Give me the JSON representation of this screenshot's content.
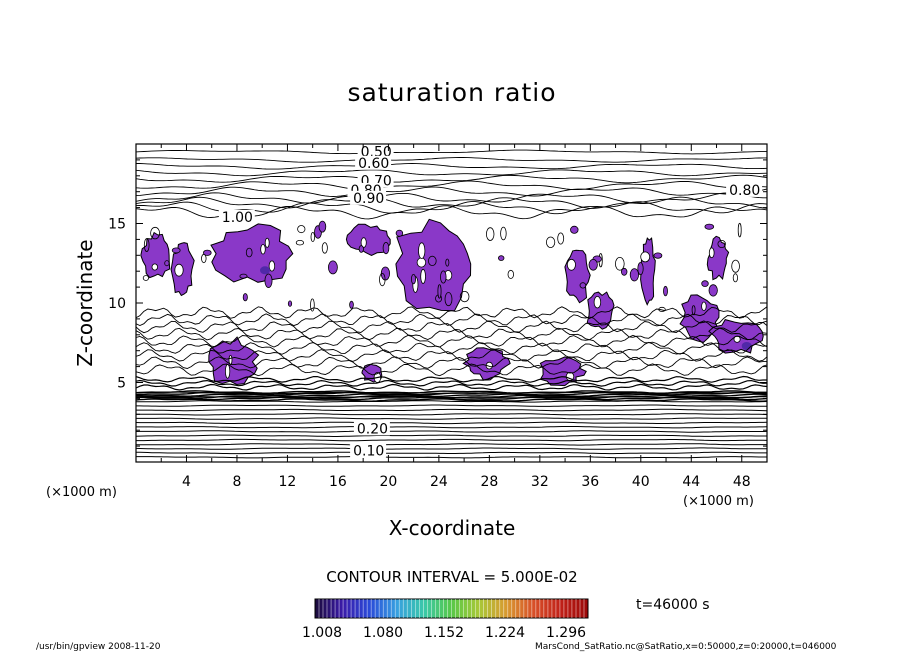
{
  "chart_data": {
    "type": "contour",
    "title": "saturation ratio",
    "xlabel": "X-coordinate",
    "ylabel": "Z-coordinate",
    "x_unit": "(×1000 m)",
    "y_unit": "(×1000 m)",
    "xlim": [
      0,
      50
    ],
    "ylim": [
      0,
      20
    ],
    "x_ticks": [
      4,
      8,
      12,
      16,
      20,
      24,
      28,
      32,
      36,
      40,
      44,
      48
    ],
    "y_ticks": [
      5,
      10,
      15
    ],
    "contour_interval_text": "CONTOUR INTERVAL = 5.000E-02",
    "contour_labels": [
      {
        "text": "0.50",
        "x": 17.8,
        "z": 19.2
      },
      {
        "text": "0.60",
        "x": 17.6,
        "z": 18.5
      },
      {
        "text": "0.70",
        "x": 17.8,
        "z": 17.4
      },
      {
        "text": "0.80",
        "x": 17.0,
        "z": 16.8
      },
      {
        "text": "0.90",
        "x": 17.2,
        "z": 16.3
      },
      {
        "text": "0.80",
        "x": 47.0,
        "z": 16.8
      },
      {
        "text": "1.00",
        "x": 6.8,
        "z": 15.1
      },
      {
        "text": "0.20",
        "x": 17.5,
        "z": 1.8
      },
      {
        "text": "0.10",
        "x": 17.2,
        "z": 0.4
      }
    ],
    "shaded_threshold": 1.008,
    "supersaturated_regions_km": [
      {
        "x": [
          5.8,
          12.6
        ],
        "z": [
          11.2,
          15.0
        ]
      },
      {
        "x": [
          0.4,
          2.8
        ],
        "z": [
          11.5,
          14.5
        ]
      },
      {
        "x": [
          2.8,
          4.6
        ],
        "z": [
          10.2,
          14.0
        ]
      },
      {
        "x": [
          5.6,
          9.8
        ],
        "z": [
          4.8,
          7.8
        ]
      },
      {
        "x": [
          16.6,
          20.2
        ],
        "z": [
          13.0,
          15.0
        ]
      },
      {
        "x": [
          20.2,
          27.2
        ],
        "z": [
          9.4,
          15.5
        ]
      },
      {
        "x": [
          17.8,
          19.6
        ],
        "z": [
          5.0,
          6.2
        ]
      },
      {
        "x": [
          26.0,
          29.6
        ],
        "z": [
          5.2,
          7.2
        ]
      },
      {
        "x": [
          31.8,
          35.6
        ],
        "z": [
          4.8,
          6.6
        ]
      },
      {
        "x": [
          35.6,
          38.0
        ],
        "z": [
          8.2,
          10.8
        ]
      },
      {
        "x": [
          34.0,
          36.0
        ],
        "z": [
          10.0,
          13.5
        ]
      },
      {
        "x": [
          40.0,
          41.2
        ],
        "z": [
          10.0,
          14.2
        ]
      },
      {
        "x": [
          43.0,
          46.4
        ],
        "z": [
          7.6,
          10.6
        ]
      },
      {
        "x": [
          45.2,
          47.0
        ],
        "z": [
          11.4,
          14.2
        ]
      },
      {
        "x": [
          45.4,
          50.0
        ],
        "z": [
          6.8,
          9.0
        ]
      }
    ],
    "colorbar": {
      "labels": [
        "1.008",
        "1.080",
        "1.152",
        "1.224",
        "1.296"
      ],
      "colors": [
        "#1a0a3a",
        "#3a1aa8",
        "#2a4ad8",
        "#38a0e0",
        "#3ac8a8",
        "#58c848",
        "#a8c838",
        "#d89a30",
        "#d85028",
        "#c02018",
        "#9a0808"
      ]
    }
  },
  "time_label": "t=46000 s",
  "footer": {
    "left": "/usr/bin/gpview   2008-11-20",
    "right": "MarsCond_SatRatio.nc@SatRatio,x=0:50000,z=0:20000,t=046000"
  },
  "colors": {
    "shade": "#8a38c8",
    "shade_dark": "#5028a8",
    "line": "#000000"
  }
}
